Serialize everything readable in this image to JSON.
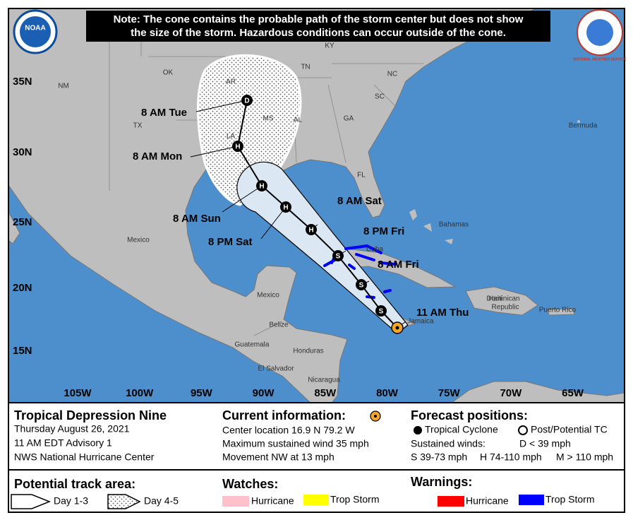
{
  "header": {
    "note": [
      "Note: The cone contains the probable path of the storm center but does not show",
      "the size of the storm. Hazardous conditions can occur outside of the cone."
    ],
    "left_logo": "NOAA",
    "right_logo": "NATIONAL WEATHER SERVICE"
  },
  "map": {
    "lat_labels": [
      "35N",
      "30N",
      "25N",
      "20N",
      "15N"
    ],
    "lon_labels": [
      "105W",
      "100W",
      "95W",
      "90W",
      "85W",
      "80W",
      "75W",
      "70W",
      "65W"
    ],
    "places": [
      "NM",
      "OK",
      "AR",
      "TN",
      "KY",
      "NC",
      "SC",
      "MS",
      "AL",
      "GA",
      "TX",
      "LA",
      "FL",
      "Bermuda",
      "Bahamas",
      "Cuba",
      "Mexico",
      "Mexico",
      "Belize",
      "Guatemala",
      "Honduras",
      "El Salvador",
      "Nicaragua",
      "Jamaica",
      "Haiti",
      "Dominican",
      "Republic",
      "Puerto Rico"
    ],
    "track": [
      {
        "time": "11 AM Thu"
      },
      {
        "time": "",
        "symbol": "S"
      },
      {
        "time": "8 AM Fri",
        "symbol": "S"
      },
      {
        "time": "8 PM Fri",
        "symbol": "S"
      },
      {
        "time": "8 AM Sat",
        "symbol": "H"
      },
      {
        "time": "8 PM Sat",
        "symbol": "H"
      },
      {
        "time": "8 AM Sun",
        "symbol": "H"
      },
      {
        "time": "8 AM Mon",
        "symbol": "H"
      },
      {
        "time": "8 AM Tue",
        "symbol": "D"
      }
    ]
  },
  "legend": {
    "storm": {
      "name": "Tropical Depression Nine",
      "date": "Thursday August 26, 2021",
      "advisory": "11 AM EDT Advisory 1",
      "center": "NWS National Hurricane Center"
    },
    "current": {
      "title": "Current information:",
      "lines": [
        "Center location 16.9 N 79.2 W",
        "Maximum sustained wind 35 mph",
        "Movement NW at 13 mph"
      ]
    },
    "forecast": {
      "title": "Forecast positions:",
      "tropical": "Tropical Cyclone",
      "post": "Post/Potential TC",
      "winds": "Sustained winds:",
      "d": "D < 39 mph",
      "s": "S 39-73 mph",
      "h": "H 74-110 mph",
      "m": "M > 110 mph"
    },
    "track_area": {
      "title": "Potential track area:",
      "day13": "Day 1-3",
      "day45": "Day 4-5"
    },
    "watches": {
      "title": "Watches:",
      "hurricane": "Hurricane",
      "storm": "Trop Storm"
    },
    "warnings": {
      "title": "Warnings:",
      "hurricane": "Hurricane",
      "storm": "Trop Storm"
    }
  }
}
